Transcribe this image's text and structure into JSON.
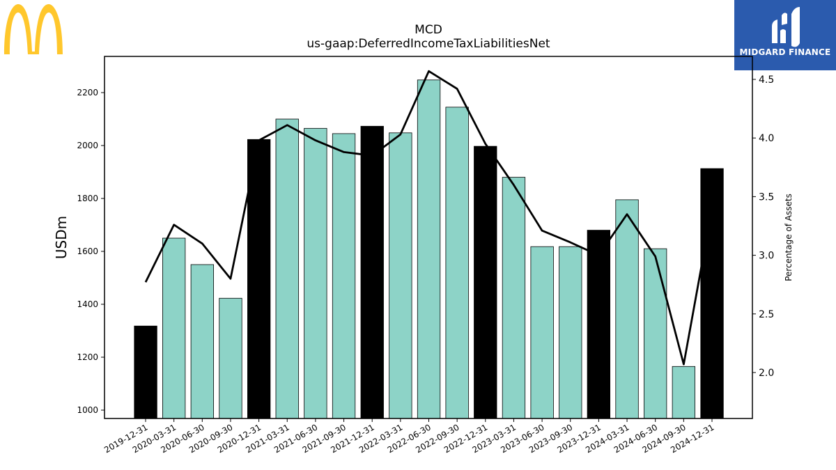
{
  "branding": {
    "left_logo": "mcdonalds-golden-arches-logo",
    "right_logo": "midgard-finance-logo",
    "right_logo_text": "MIDGARD FINANCE",
    "colors": {
      "arches": "#FFC72C",
      "midgard_bg": "#2B5BAE",
      "bar_quarter": "#8DD3C7",
      "bar_annual": "#000000",
      "line": "#000000"
    }
  },
  "chart_data": {
    "type": "bar",
    "title": "MCD",
    "subtitle": "us-gaap:DeferredIncomeTaxLiabilitiesNet",
    "xlabel": "",
    "ylabel": "USDm",
    "y2label": "Percentage of Assets",
    "ylim": [
      970,
      2340
    ],
    "y2lim": [
      1.6,
      4.6
    ],
    "yticks": [
      1000,
      1200,
      1400,
      1600,
      1800,
      2000,
      2200
    ],
    "y2ticks": [
      "2.0",
      "2.5",
      "3.0",
      "3.5",
      "4.0",
      "4.5"
    ],
    "categories": [
      "2019-12-31",
      "2020-03-31",
      "2020-06-30",
      "2020-09-30",
      "2020-12-31",
      "2021-03-31",
      "2021-06-30",
      "2021-09-30",
      "2021-12-31",
      "2022-03-31",
      "2022-06-30",
      "2022-09-30",
      "2022-12-31",
      "2023-03-31",
      "2023-06-30",
      "2023-09-30",
      "2023-12-31",
      "2024-03-31",
      "2024-06-30",
      "2024-09-30",
      "2024-12-31"
    ],
    "series": [
      {
        "type": "bar",
        "values": [
          1318,
          1650,
          1550,
          1423,
          2023,
          2100,
          2065,
          2045,
          2073,
          2048,
          2248,
          2145,
          1997,
          1880,
          1618,
          1618,
          1680,
          1795,
          1610,
          1165,
          1913
        ],
        "annual_flags": [
          true,
          false,
          false,
          false,
          true,
          false,
          false,
          false,
          true,
          false,
          false,
          false,
          true,
          false,
          false,
          false,
          true,
          false,
          false,
          false,
          true
        ]
      },
      {
        "type": "line",
        "axis": "right",
        "values": [
          2.77,
          3.26,
          3.1,
          2.8,
          3.98,
          4.11,
          3.98,
          3.88,
          3.85,
          4.03,
          4.57,
          4.42,
          3.95,
          3.6,
          3.21,
          3.11,
          3.0,
          3.35,
          2.99,
          2.07,
          3.4
        ]
      }
    ],
    "grid": false,
    "legend": "none"
  }
}
